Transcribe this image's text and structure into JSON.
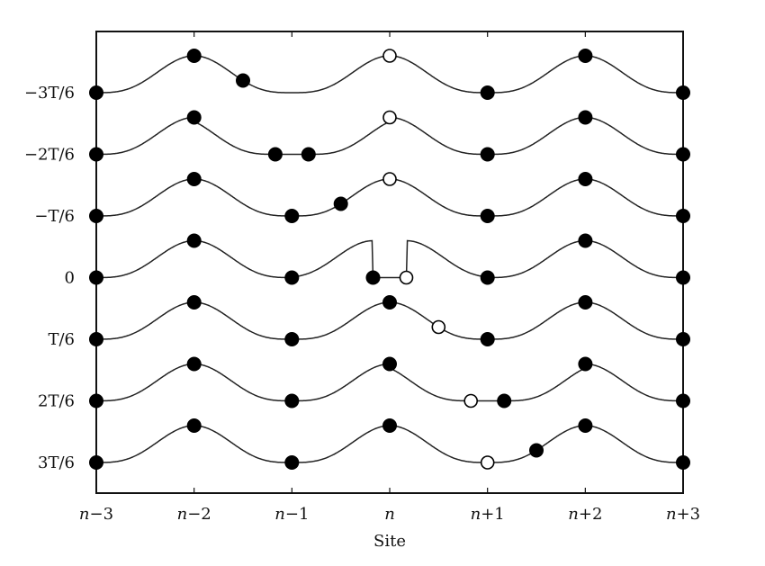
{
  "chart_data": {
    "type": "diagram",
    "description": "Time-evolution of a particle-hole pair across a periodic lattice potential",
    "xlabel": "Site",
    "x_ticks": [
      "n−3",
      "n−2",
      "n−1",
      "n",
      "n+1",
      "n+2",
      "n+3"
    ],
    "y_ticks": [
      "−3T/6",
      "−2T/6",
      "−T/6",
      "0",
      "T/6",
      "2T/6",
      "3T/6"
    ],
    "rows": [
      {
        "time": "−3T/6",
        "filled": [
          0,
          1,
          1.5,
          4,
          5,
          6
        ],
        "open": [
          3
        ],
        "flat": null
      },
      {
        "time": "−2T/6",
        "filled": [
          0,
          1,
          1.83,
          2.17,
          4,
          5,
          6
        ],
        "open": [
          3
        ],
        "flat": [
          1.83,
          2.17
        ]
      },
      {
        "time": "−T/6",
        "filled": [
          0,
          1,
          2,
          2.5,
          4,
          5,
          6
        ],
        "open": [
          3
        ],
        "flat": null
      },
      {
        "time": "0",
        "filled": [
          0,
          1,
          2,
          2.83,
          4,
          5,
          6
        ],
        "open": [
          3.17
        ],
        "flat": [
          2.83,
          3.17
        ]
      },
      {
        "time": "T/6",
        "filled": [
          0,
          1,
          2,
          3,
          4,
          5,
          6
        ],
        "open": [
          3.5
        ],
        "flat": null
      },
      {
        "time": "2T/6",
        "filled": [
          0,
          1,
          2,
          3,
          4.17,
          5,
          6
        ],
        "open": [
          3.83
        ],
        "flat": [
          3.83,
          4.17
        ]
      },
      {
        "time": "3T/6",
        "filled": [
          0,
          1,
          2,
          3,
          4.5,
          5,
          6
        ],
        "open": [
          4
        ],
        "flat": null
      }
    ],
    "colors": {
      "line": "#222222",
      "filled": "#000000",
      "open_fill": "#ffffff",
      "frame": "#111111"
    }
  },
  "axes": {
    "x_title": "Site",
    "y_labels": [
      "−3T/6",
      "−2T/6",
      "−T/6",
      "0",
      "T/6",
      "2T/6",
      "3T/6"
    ],
    "x_labels": [
      {
        "var": "n",
        "suffix": "−3"
      },
      {
        "var": "n",
        "suffix": "−2"
      },
      {
        "var": "n",
        "suffix": "−1"
      },
      {
        "var": "n",
        "suffix": ""
      },
      {
        "var": "n",
        "suffix": "+1"
      },
      {
        "var": "n",
        "suffix": "+2"
      },
      {
        "var": "n",
        "suffix": "+3"
      }
    ]
  }
}
